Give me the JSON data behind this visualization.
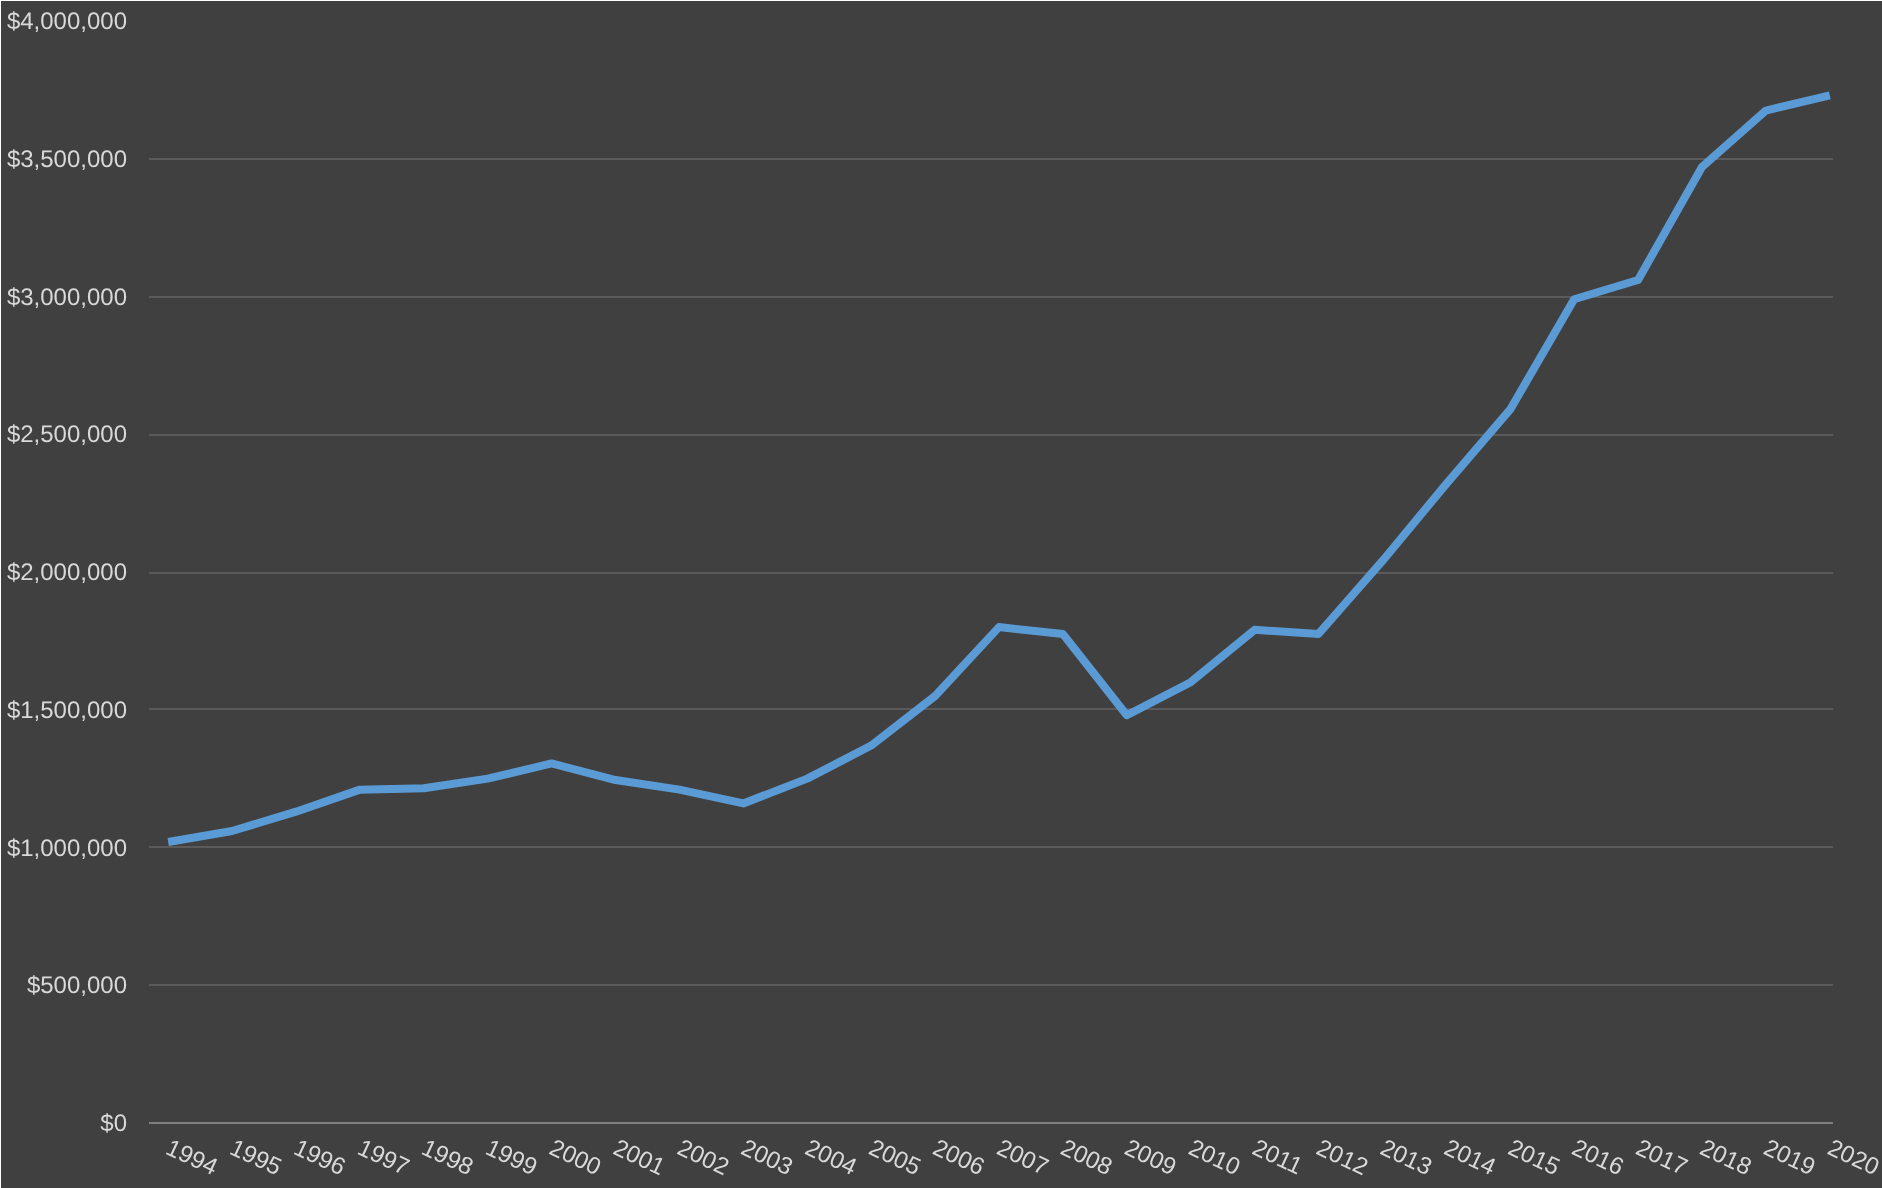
{
  "chart_data": {
    "type": "line",
    "categories": [
      "1994",
      "1995",
      "1996",
      "1997",
      "1998",
      "1999",
      "2000",
      "2001",
      "2002",
      "2003",
      "2004",
      "2005",
      "2006",
      "2007",
      "2008",
      "2009",
      "2010",
      "2011",
      "2012",
      "2013",
      "2014",
      "2015",
      "2016",
      "2017",
      "2018",
      "2019",
      "2020"
    ],
    "series": [
      {
        "color": "#5b9bd5",
        "values": [
          1020000,
          1060000,
          1130000,
          1210000,
          1215000,
          1250000,
          1305000,
          1245000,
          1210000,
          1160000,
          1250000,
          1370000,
          1550000,
          1800000,
          1775000,
          1480000,
          1600000,
          1790000,
          1775000,
          2040000,
          2320000,
          2590000,
          2990000,
          3060000,
          3470000,
          3675000,
          3730000
        ]
      }
    ],
    "ylim": [
      0,
      4000000
    ],
    "yticks": [
      {
        "value": 0,
        "label": "$0"
      },
      {
        "value": 500000,
        "label": "$500,000"
      },
      {
        "value": 1000000,
        "label": "$1,000,000"
      },
      {
        "value": 1500000,
        "label": "$1,500,000"
      },
      {
        "value": 2000000,
        "label": "$2,000,000"
      },
      {
        "value": 2500000,
        "label": "$2,500,000"
      },
      {
        "value": 3000000,
        "label": "$3,000,000"
      },
      {
        "value": 3500000,
        "label": "$3,500,000"
      },
      {
        "value": 4000000,
        "label": "$4,000,000"
      }
    ],
    "grid": "y",
    "marker": "none",
    "line_style": "solid"
  }
}
